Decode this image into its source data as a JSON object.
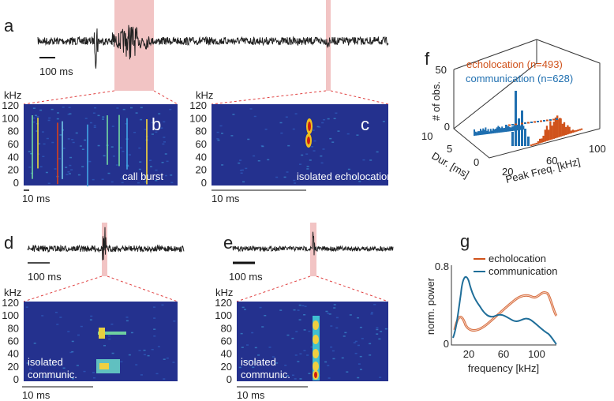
{
  "panels": {
    "a": {
      "label": "a",
      "scale_bar": "100 ms"
    },
    "b": {
      "label": "b",
      "unit": "kHz",
      "yticks": [
        "120",
        "100",
        "80",
        "60",
        "40",
        "20",
        "0"
      ],
      "scale_bar": "10 ms",
      "caption": "call burst"
    },
    "c": {
      "label": "c",
      "unit": "kHz",
      "yticks": [
        "120",
        "100",
        "80",
        "60",
        "40",
        "20",
        "0"
      ],
      "scale_bar": "10 ms",
      "caption": "isolated echolocation"
    },
    "d": {
      "label": "d",
      "trace_scale_bar": "100 ms",
      "unit": "kHz",
      "yticks": [
        "120",
        "100",
        "80",
        "60",
        "40",
        "20",
        "0"
      ],
      "scale_bar": "10 ms",
      "caption": [
        "isolated",
        "communic."
      ]
    },
    "e": {
      "label": "e",
      "trace_scale_bar": "100 ms",
      "unit": "kHz",
      "yticks": [
        "120",
        "100",
        "80",
        "60",
        "40",
        "20",
        "0"
      ],
      "scale_bar": "10 ms",
      "caption": [
        "isolated",
        "communic."
      ]
    },
    "f": {
      "label": "f",
      "z_label": "# of obs.",
      "z_ticks": [
        "50",
        "0"
      ],
      "dur_label": "Dur. [ms]",
      "dur_ticks": [
        "10",
        "5",
        "0"
      ],
      "freq_label": "Peak Freq. [kHz]",
      "freq_ticks": [
        "20",
        "60",
        "100"
      ],
      "legend": [
        "echolocation (n=493)",
        "communication (n=628)"
      ]
    },
    "g": {
      "label": "g",
      "y_label": "norm. power",
      "y_ticks": [
        "0.8",
        "0"
      ],
      "x_label": "frequency [kHz]",
      "x_ticks": [
        "20",
        "60",
        "100"
      ],
      "legend": [
        "echolocation",
        "communication"
      ]
    }
  }
}
